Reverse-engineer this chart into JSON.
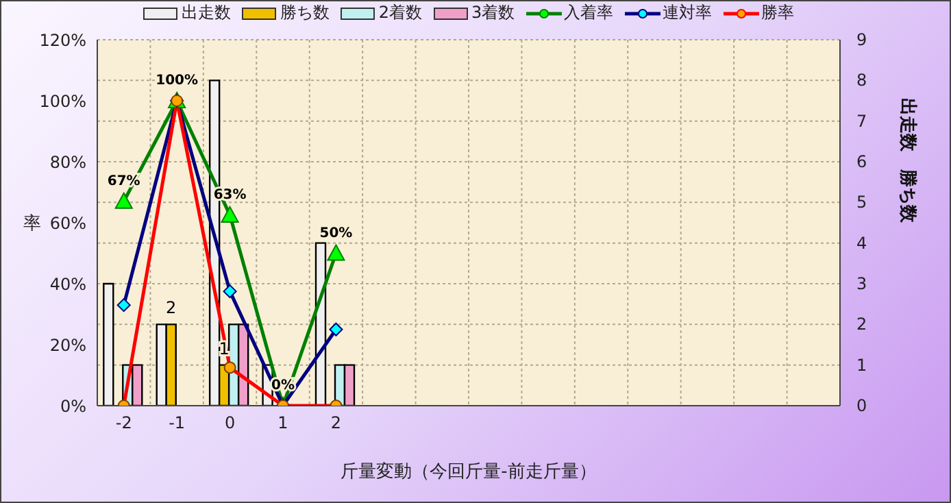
{
  "chart_data": {
    "type": "bar",
    "xlabel": "斤量変動（今回斤量-前走斤量）",
    "ylabel": "率",
    "y2label": "出走数　勝ち数",
    "categories": [
      "-2",
      "-1",
      "0",
      "1",
      "2",
      null,
      null,
      null,
      null,
      null,
      null,
      null,
      null,
      null
    ],
    "series": [
      {
        "name": "出走数",
        "axis": "y2",
        "color": "#f0f0f0",
        "values": [
          3,
          2,
          8,
          1,
          4,
          null,
          null,
          null,
          null,
          null,
          null,
          null,
          null,
          null
        ]
      },
      {
        "name": "勝ち数",
        "axis": "y2",
        "color": "#f0c000",
        "values": [
          0,
          2,
          1,
          0,
          0,
          null,
          null,
          null,
          null,
          null,
          null,
          null,
          null,
          null
        ],
        "value_labels": [
          null,
          "2",
          "1",
          null,
          null,
          null,
          null,
          null,
          null,
          null,
          null,
          null,
          null,
          null
        ]
      },
      {
        "name": "2着数",
        "axis": "y2",
        "color": "#c0f0f0",
        "values": [
          1,
          0,
          2,
          0,
          1,
          null,
          null,
          null,
          null,
          null,
          null,
          null,
          null,
          null
        ]
      },
      {
        "name": "3着数",
        "axis": "y2",
        "color": "#f0a0c8",
        "values": [
          1,
          0,
          2,
          0,
          1,
          null,
          null,
          null,
          null,
          null,
          null,
          null,
          null,
          null
        ]
      },
      {
        "name": "入着率",
        "type": "line",
        "marker": "triangle",
        "color": "#008000",
        "values": [
          67,
          100,
          62.5,
          0,
          50,
          null,
          null,
          null,
          null,
          null,
          null,
          null,
          null,
          null
        ],
        "value_labels": [
          "67%",
          "100%",
          "63%",
          "0%",
          "50%",
          null,
          null,
          null,
          null,
          null,
          null,
          null,
          null,
          null
        ]
      },
      {
        "name": "連対率",
        "type": "line",
        "marker": "diamond",
        "color": "#000080",
        "values": [
          33,
          100,
          37.5,
          0,
          25,
          null,
          null,
          null,
          null,
          null,
          null,
          null,
          null,
          null
        ]
      },
      {
        "name": "勝率",
        "type": "line",
        "marker": "circle",
        "color": "#ff0000",
        "values": [
          0,
          100,
          12.5,
          0,
          0,
          null,
          null,
          null,
          null,
          null,
          null,
          null,
          null,
          null
        ]
      }
    ],
    "ylim": [
      0,
      120
    ],
    "yticks": [
      {
        "value": 0,
        "label": "0%"
      },
      {
        "value": 20,
        "label": "20%"
      },
      {
        "value": 40,
        "label": "40%"
      },
      {
        "value": 60,
        "label": "60%"
      },
      {
        "value": 80,
        "label": "80%"
      },
      {
        "value": 100,
        "label": "100%"
      },
      {
        "value": 120,
        "label": "120%"
      }
    ],
    "y2lim": [
      0,
      9
    ],
    "y2ticks": [
      0,
      1,
      2,
      3,
      4,
      5,
      6,
      7,
      8,
      9
    ],
    "grid": true,
    "legend": "top"
  }
}
